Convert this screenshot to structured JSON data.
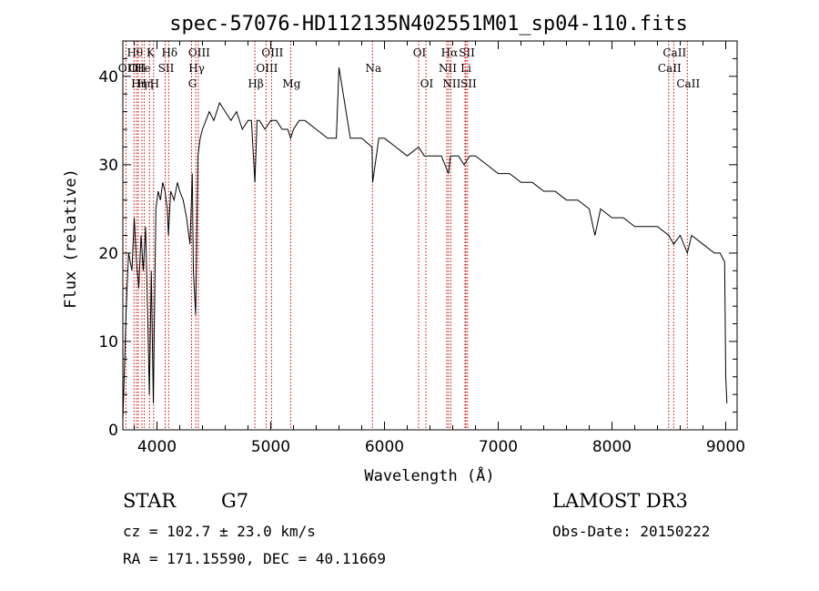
{
  "chart_data": {
    "type": "line",
    "title": "spec-57076-HD112135N402551M01_sp04-110.fits",
    "xlabel": "Wavelength (Å)",
    "ylabel": "Flux (relative)",
    "xlim": [
      3700,
      9100
    ],
    "ylim": [
      0,
      44
    ],
    "xticks": [
      4000,
      5000,
      6000,
      7000,
      8000,
      9000
    ],
    "yticks": [
      0,
      10,
      20,
      30,
      40
    ],
    "grid": false,
    "line_color": "#000000",
    "marker_color": "#cc0000",
    "series": [
      {
        "x": [
          3700,
          3730,
          3750,
          3780,
          3800,
          3820,
          3840,
          3860,
          3880,
          3900,
          3920,
          3933,
          3950,
          3968,
          3990,
          4010,
          4030,
          4050,
          4070,
          4090,
          4101,
          4120,
          4150,
          4180,
          4200,
          4230,
          4260,
          4290,
          4310,
          4320,
          4340,
          4360,
          4380,
          4400,
          4430,
          4460,
          4500,
          4550,
          4600,
          4650,
          4700,
          4750,
          4800,
          4830,
          4861,
          4880,
          4900,
          4950,
          5000,
          5050,
          5100,
          5150,
          5175,
          5200,
          5250,
          5300,
          5400,
          5500,
          5577,
          5600,
          5700,
          5800,
          5890,
          5896,
          5950,
          6000,
          6100,
          6200,
          6300,
          6350,
          6400,
          6450,
          6500,
          6563,
          6580,
          6600,
          6650,
          6700,
          6750,
          6800,
          6900,
          7000,
          7100,
          7200,
          7300,
          7400,
          7500,
          7600,
          7700,
          7800,
          7850,
          7900,
          8000,
          8100,
          8200,
          8300,
          8400,
          8500,
          8542,
          8600,
          8662,
          8700,
          8800,
          8900,
          8950,
          8990,
          9000,
          9010
        ],
        "y": [
          1,
          14,
          20,
          18,
          24,
          19,
          16,
          22,
          18,
          23,
          12,
          4,
          18,
          3,
          25,
          27,
          26,
          28,
          27,
          25,
          22,
          27,
          26,
          28,
          27,
          26,
          24,
          21,
          29,
          18,
          13,
          31,
          33,
          34,
          35,
          36,
          35,
          37,
          36,
          35,
          36,
          34,
          35,
          35,
          28,
          35,
          35,
          34,
          35,
          35,
          34,
          34,
          33,
          34,
          35,
          35,
          34,
          33,
          33,
          41,
          33,
          33,
          32,
          28,
          33,
          33,
          32,
          31,
          32,
          31,
          31,
          31,
          31,
          29,
          31,
          31,
          31,
          30,
          31,
          31,
          30,
          29,
          29,
          28,
          28,
          27,
          27,
          26,
          26,
          25,
          22,
          25,
          24,
          24,
          23,
          23,
          23,
          22,
          21,
          22,
          20,
          22,
          21,
          20,
          20,
          19,
          6,
          3
        ]
      }
    ],
    "line_markers": [
      {
        "w": 3727,
        "label": "OII",
        "row": 2
      },
      {
        "w": 3798,
        "label": "Hθ",
        "row": 1
      },
      {
        "w": 3820,
        "label": "OII",
        "row": 2
      },
      {
        "w": 3835,
        "label": "Hη",
        "row": 3
      },
      {
        "w": 3868,
        "label": "He",
        "row": 2
      },
      {
        "w": 3889,
        "label": "Hη",
        "row": 3
      },
      {
        "w": 3934,
        "label": "K",
        "row": 1
      },
      {
        "w": 3970,
        "label": "H",
        "row": 3
      },
      {
        "w": 4072,
        "label": "SII",
        "row": 2
      },
      {
        "w": 4102,
        "label": "Hδ",
        "row": 1
      },
      {
        "w": 4304,
        "label": "G",
        "row": 3
      },
      {
        "w": 4341,
        "label": "Hγ",
        "row": 2
      },
      {
        "w": 4363,
        "label": "OIII",
        "row": 1
      },
      {
        "w": 4861,
        "label": "Hβ",
        "row": 3
      },
      {
        "w": 4959,
        "label": "OIII",
        "row": 2
      },
      {
        "w": 5007,
        "label": "OIII",
        "row": 1
      },
      {
        "w": 5175,
        "label": "Mg",
        "row": 3
      },
      {
        "w": 5894,
        "label": "Na",
        "row": 2
      },
      {
        "w": 6300,
        "label": "OI",
        "row": 1
      },
      {
        "w": 6364,
        "label": "OI",
        "row": 3
      },
      {
        "w": 6548,
        "label": "NII",
        "row": 2
      },
      {
        "w": 6563,
        "label": "Hα",
        "row": 1
      },
      {
        "w": 6583,
        "label": "NII",
        "row": 3
      },
      {
        "w": 6708,
        "label": "Li",
        "row": 2
      },
      {
        "w": 6716,
        "label": "SII",
        "row": 1
      },
      {
        "w": 6731,
        "label": "SII",
        "row": 3
      },
      {
        "w": 8498,
        "label": "CaII",
        "row": 2
      },
      {
        "w": 8542,
        "label": "CaII",
        "row": 1
      },
      {
        "w": 8662,
        "label": "CaII",
        "row": 3
      }
    ]
  },
  "info": {
    "object_class": "STAR",
    "subclass": "G7",
    "survey": "LAMOST DR3",
    "redshift_line": "cz = 102.7 ± 23.0 km/s",
    "obs_date_line": "Obs-Date: 20150222",
    "coords_line": "RA = 171.15590, DEC =  40.11669"
  }
}
